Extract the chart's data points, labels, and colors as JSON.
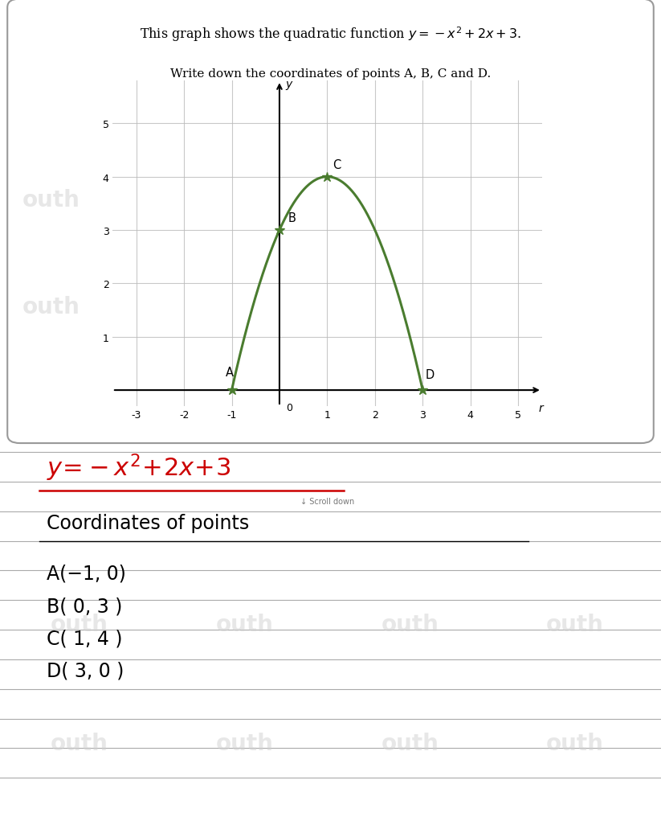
{
  "title_text": "This graph shows the quadratic function $y = -x^2 + 2x + 3$.",
  "subtitle_text": "Write down the coordinates of points A, B, C and D.",
  "points": {
    "A": [
      -1,
      0
    ],
    "B": [
      0,
      3
    ],
    "C": [
      1,
      4
    ],
    "D": [
      3,
      0
    ]
  },
  "xlim": [
    -3.5,
    5.5
  ],
  "ylim": [
    -0.3,
    5.8
  ],
  "xticks": [
    -3,
    -2,
    -1,
    1,
    2,
    3,
    4,
    5
  ],
  "yticks": [
    1,
    2,
    3,
    4,
    5
  ],
  "curve_color": "#4a7c2f",
  "grid_color": "#bbbbbb",
  "watermark_color": "#d0d0d0",
  "equation_color": "#cc0000",
  "coords_text": [
    [
      "A",
      "(−1, 0)"
    ],
    [
      "B",
      "( 0, 3 )"
    ],
    [
      "C",
      "( 1, 4 )"
    ],
    [
      "D",
      "( 3, 0 )"
    ]
  ]
}
